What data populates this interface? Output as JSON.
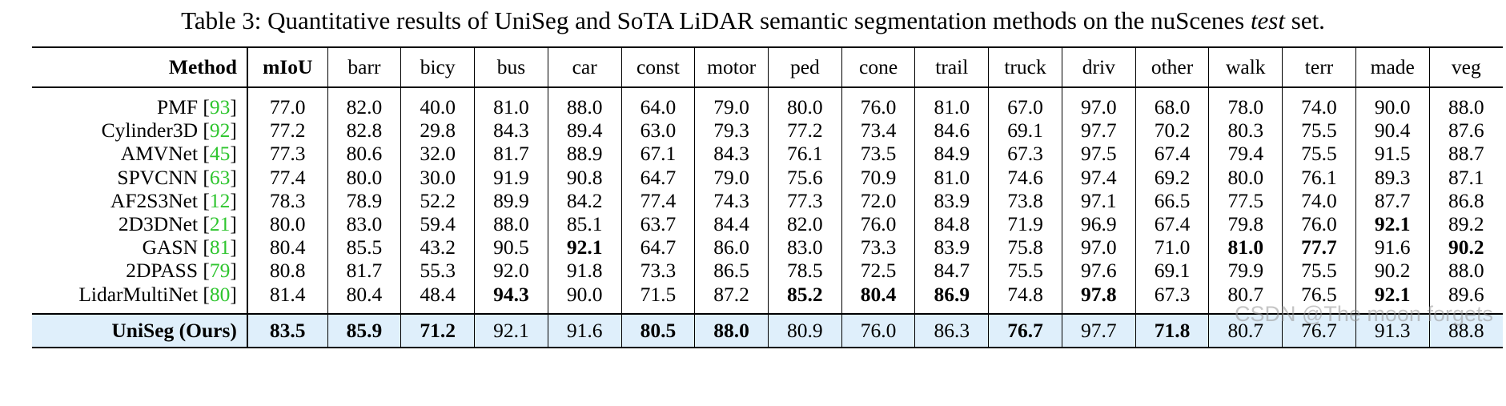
{
  "caption": {
    "prefix": "Table 3: Quantitative results of UniSeg and SoTA LiDAR semantic segmentation methods on the nuScenes ",
    "italic": "test",
    "suffix": " set."
  },
  "headers": [
    "Method",
    "mIoU",
    "barr",
    "bicy",
    "bus",
    "car",
    "const",
    "motor",
    "ped",
    "cone",
    "trail",
    "truck",
    "driv",
    "other",
    "walk",
    "terr",
    "made",
    "veg"
  ],
  "rows": [
    {
      "method": "PMF",
      "ref": "93",
      "values": [
        "77.0",
        "82.0",
        "40.0",
        "81.0",
        "88.0",
        "64.0",
        "79.0",
        "80.0",
        "76.0",
        "81.0",
        "67.0",
        "97.0",
        "68.0",
        "78.0",
        "74.0",
        "90.0",
        "88.0"
      ],
      "bold": []
    },
    {
      "method": "Cylinder3D",
      "ref": "92",
      "values": [
        "77.2",
        "82.8",
        "29.8",
        "84.3",
        "89.4",
        "63.0",
        "79.3",
        "77.2",
        "73.4",
        "84.6",
        "69.1",
        "97.7",
        "70.2",
        "80.3",
        "75.5",
        "90.4",
        "87.6"
      ],
      "bold": []
    },
    {
      "method": "AMVNet",
      "ref": "45",
      "values": [
        "77.3",
        "80.6",
        "32.0",
        "81.7",
        "88.9",
        "67.1",
        "84.3",
        "76.1",
        "73.5",
        "84.9",
        "67.3",
        "97.5",
        "67.4",
        "79.4",
        "75.5",
        "91.5",
        "88.7"
      ],
      "bold": []
    },
    {
      "method": "SPVCNN",
      "ref": "63",
      "values": [
        "77.4",
        "80.0",
        "30.0",
        "91.9",
        "90.8",
        "64.7",
        "79.0",
        "75.6",
        "70.9",
        "81.0",
        "74.6",
        "97.4",
        "69.2",
        "80.0",
        "76.1",
        "89.3",
        "87.1"
      ],
      "bold": []
    },
    {
      "method": "AF2S3Net",
      "ref": "12",
      "values": [
        "78.3",
        "78.9",
        "52.2",
        "89.9",
        "84.2",
        "77.4",
        "74.3",
        "77.3",
        "72.0",
        "83.9",
        "73.8",
        "97.1",
        "66.5",
        "77.5",
        "74.0",
        "87.7",
        "86.8"
      ],
      "bold": []
    },
    {
      "method": "2D3DNet",
      "ref": "21",
      "values": [
        "80.0",
        "83.0",
        "59.4",
        "88.0",
        "85.1",
        "63.7",
        "84.4",
        "82.0",
        "76.0",
        "84.8",
        "71.9",
        "96.9",
        "67.4",
        "79.8",
        "76.0",
        "92.1",
        "89.2"
      ],
      "bold": [
        15
      ]
    },
    {
      "method": "GASN",
      "ref": "81",
      "values": [
        "80.4",
        "85.5",
        "43.2",
        "90.5",
        "92.1",
        "64.7",
        "86.0",
        "83.0",
        "73.3",
        "83.9",
        "75.8",
        "97.0",
        "71.0",
        "81.0",
        "77.7",
        "91.6",
        "90.2"
      ],
      "bold": [
        4,
        13,
        14,
        16
      ]
    },
    {
      "method": "2DPASS",
      "ref": "79",
      "values": [
        "80.8",
        "81.7",
        "55.3",
        "92.0",
        "91.8",
        "73.3",
        "86.5",
        "78.5",
        "72.5",
        "84.7",
        "75.5",
        "97.6",
        "69.1",
        "79.9",
        "75.5",
        "90.2",
        "88.0"
      ],
      "bold": []
    },
    {
      "method": "LidarMultiNet",
      "ref": "80",
      "values": [
        "81.4",
        "80.4",
        "48.4",
        "94.3",
        "90.0",
        "71.5",
        "87.2",
        "85.2",
        "80.4",
        "86.9",
        "74.8",
        "97.8",
        "67.3",
        "80.7",
        "76.5",
        "92.1",
        "89.6"
      ],
      "bold": [
        3,
        7,
        8,
        9,
        11,
        15
      ]
    }
  ],
  "ours": {
    "method": "UniSeg (Ours)",
    "values": [
      "83.5",
      "85.9",
      "71.2",
      "92.1",
      "91.6",
      "80.5",
      "88.0",
      "80.9",
      "76.0",
      "86.3",
      "76.7",
      "97.7",
      "71.8",
      "80.7",
      "76.7",
      "91.3",
      "88.8"
    ],
    "bold": [
      0,
      1,
      2,
      5,
      6,
      10,
      12
    ]
  },
  "watermark": "CSDN @The moon forgets",
  "colors": {
    "ref": "#2ec52e",
    "highlight_row": "#dfeffb"
  }
}
